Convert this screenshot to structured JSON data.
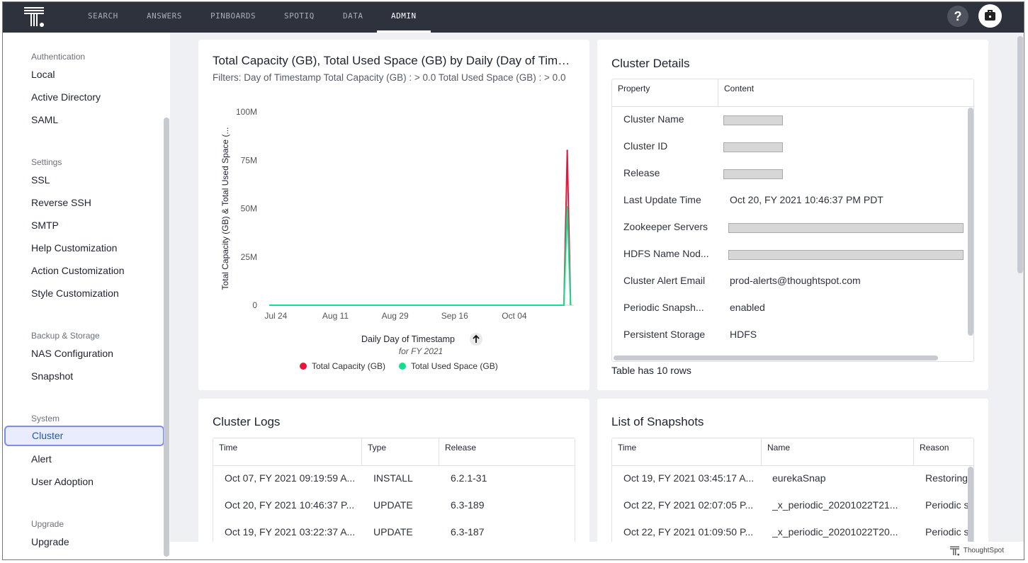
{
  "nav": {
    "items": [
      "SEARCH",
      "ANSWERS",
      "PINBOARDS",
      "SPOTIQ",
      "DATA",
      "ADMIN"
    ],
    "active": "ADMIN",
    "help": "?"
  },
  "sidebar": {
    "sections": [
      {
        "title": "Authentication",
        "items": [
          "Local",
          "Active Directory",
          "SAML"
        ]
      },
      {
        "title": "Settings",
        "items": [
          "SSL",
          "Reverse SSH",
          "SMTP",
          "Help Customization",
          "Action Customization",
          "Style Customization"
        ]
      },
      {
        "title": "Backup & Storage",
        "items": [
          "NAS Configuration",
          "Snapshot"
        ]
      },
      {
        "title": "System",
        "items": [
          "Cluster",
          "Alert",
          "User Adoption"
        ]
      },
      {
        "title": "Upgrade",
        "items": [
          "Upgrade"
        ]
      }
    ],
    "selected": "Cluster"
  },
  "chart_card": {
    "title": "Total Capacity (GB), Total Used Space (GB) by Daily (Day of Timestamp)",
    "filters": "Filters: Day of Timestamp Total Capacity (GB) : > 0.0 Total Used Space (GB) : > 0.0",
    "x_caption": "Daily Day of Timestamp",
    "x_subcaption": "for FY 2021",
    "sort_icon": "arrow-up-icon"
  },
  "chart_data": {
    "type": "line",
    "xlabel": "Daily Day of Timestamp",
    "ylabel": "Total Capacity (GB) & Total Used Space (...",
    "x_ticks": [
      "Jul 24",
      "Aug 11",
      "Aug 29",
      "Sep 16",
      "Oct 04"
    ],
    "y_ticks": [
      "0",
      "25M",
      "50M",
      "75M",
      "100M"
    ],
    "ylim": [
      0,
      100000000
    ],
    "xlim": [
      "2020-07-22",
      "2020-10-22"
    ],
    "x": [
      "2020-07-22",
      "2020-10-19",
      "2020-10-20",
      "2020-10-21"
    ],
    "series": [
      {
        "name": "Total Capacity (GB)",
        "color": "#e8173a",
        "values": [
          0,
          0,
          80000000,
          0
        ]
      },
      {
        "name": "Total Used Space (GB)",
        "color": "#12e08e",
        "values": [
          0,
          0,
          51000000,
          0
        ]
      }
    ],
    "legend": "bottom",
    "grid": false
  },
  "cluster_details": {
    "title": "Cluster Details",
    "columns": [
      "Property",
      "Content"
    ],
    "rows": [
      {
        "property": "Cluster Name",
        "content": "",
        "redacted": true
      },
      {
        "property": "Cluster ID",
        "content": "",
        "redacted": true
      },
      {
        "property": "Release",
        "content": "",
        "redacted": true
      },
      {
        "property": "Last Update Time",
        "content": "Oct 20, FY 2021 10:46:37 PM PDT"
      },
      {
        "property": "Zookeeper Servers",
        "content": "",
        "redacted": true
      },
      {
        "property": "HDFS Name Nod...",
        "content": "",
        "redacted": true
      },
      {
        "property": "Cluster Alert Email",
        "content": "prod-alerts@thoughtspot.com"
      },
      {
        "property": "Periodic Snapsh...",
        "content": "enabled"
      },
      {
        "property": "Persistent Storage",
        "content": "HDFS"
      }
    ],
    "row_count": "Table has 10 rows"
  },
  "cluster_logs": {
    "title": "Cluster Logs",
    "columns": [
      "Time",
      "Type",
      "Release"
    ],
    "rows": [
      [
        "Oct 07, FY 2021 09:19:59 A...",
        "INSTALL",
        "6.2.1-31"
      ],
      [
        "Oct 20, FY 2021 10:46:37 P...",
        "UPDATE",
        "6.3-189"
      ],
      [
        "Oct 19, FY 2021 03:22:37 A...",
        "UPDATE",
        "6.3-187"
      ]
    ]
  },
  "snapshots": {
    "title": "List of Snapshots",
    "columns": [
      "Time",
      "Name",
      "Reason"
    ],
    "rows": [
      [
        "Oct 19, FY 2021 03:45:17 A...",
        "eurekaSnap",
        "Restoring"
      ],
      [
        "Oct 22, FY 2021 02:07:05 P...",
        "_x_periodic_20201022T21...",
        "Periodic s"
      ],
      [
        "Oct 22, FY 2021 01:09:50 P...",
        "_x_periodic_20201022T20...",
        "Periodic s"
      ]
    ]
  },
  "footer": {
    "brand": "ThoughtSpot"
  }
}
